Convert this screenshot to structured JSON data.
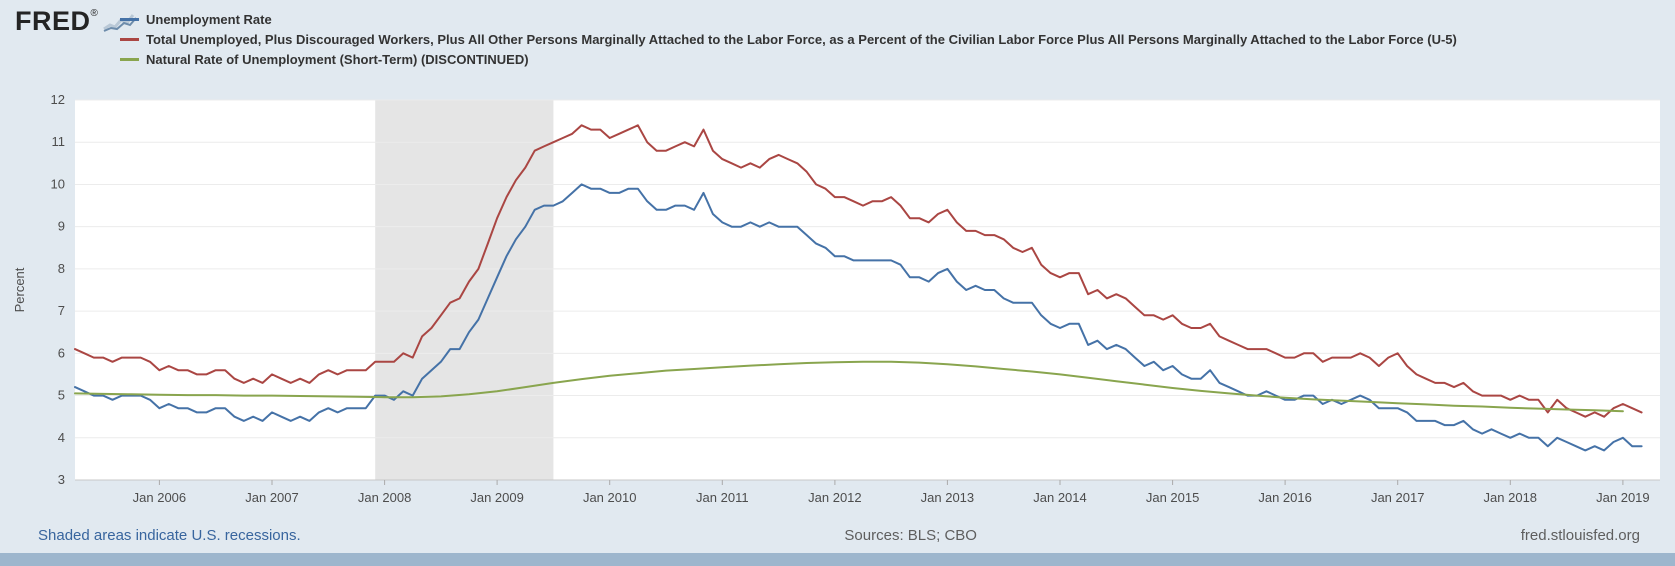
{
  "brand": {
    "name": "FRED",
    "registered": "®",
    "sparkline_icon": "fred-sparkline"
  },
  "colors": {
    "page_background": "#e1e9f0",
    "plot_background": "#ffffff",
    "recession_band": "#e5e5e5",
    "gridline": "#ececec",
    "axis_line": "#c8c8c8",
    "bottom_bar": "#9db6cd",
    "blue_series": "#4572a7",
    "red_series": "#aa4643",
    "green_series": "#89a54e",
    "link_blue": "#38659e"
  },
  "legend": {
    "items": [
      {
        "label": "Unemployment Rate",
        "color": "#4572a7"
      },
      {
        "label": "Total Unemployed, Plus Discouraged Workers, Plus All Other Persons Marginally Attached to the Labor Force, as a Percent of the Civilian Labor Force Plus All Persons Marginally Attached to the Labor Force (U-5)",
        "color": "#aa4643"
      },
      {
        "label": "Natural Rate of Unemployment (Short-Term) (DISCONTINUED)",
        "color": "#89a54e"
      }
    ]
  },
  "footer": {
    "notes": "Shaded areas indicate U.S. recessions.",
    "sources": "Sources: BLS; CBO",
    "site": "fred.stlouisfed.org"
  },
  "chart_data": {
    "type": "line",
    "title": "",
    "xlabel": "",
    "ylabel": "Percent",
    "ylim": [
      3,
      12
    ],
    "xlim": [
      2005.25,
      2019.33
    ],
    "grid": true,
    "legend_position": "top-left",
    "y_ticks": [
      3,
      4,
      5,
      6,
      7,
      8,
      9,
      10,
      11,
      12
    ],
    "x_ticks": [
      {
        "x": 2006,
        "label": "Jan 2006"
      },
      {
        "x": 2007,
        "label": "Jan 2007"
      },
      {
        "x": 2008,
        "label": "Jan 2008"
      },
      {
        "x": 2009,
        "label": "Jan 2009"
      },
      {
        "x": 2010,
        "label": "Jan 2010"
      },
      {
        "x": 2011,
        "label": "Jan 2011"
      },
      {
        "x": 2012,
        "label": "Jan 2012"
      },
      {
        "x": 2013,
        "label": "Jan 2013"
      },
      {
        "x": 2014,
        "label": "Jan 2014"
      },
      {
        "x": 2015,
        "label": "Jan 2015"
      },
      {
        "x": 2016,
        "label": "Jan 2016"
      },
      {
        "x": 2017,
        "label": "Jan 2017"
      },
      {
        "x": 2018,
        "label": "Jan 2018"
      },
      {
        "x": 2019,
        "label": "Jan 2019"
      }
    ],
    "recessions": [
      {
        "start": 2007.917,
        "end": 2009.5
      }
    ],
    "series": [
      {
        "name": "Unemployment Rate",
        "color": "#4572a7",
        "width": 2,
        "x_start": 2005.25,
        "x_step": 0.0833333,
        "frequency": "monthly",
        "first_period": "2005-04",
        "values": [
          5.2,
          5.1,
          5.0,
          5.0,
          4.9,
          5.0,
          5.0,
          5.0,
          4.9,
          4.7,
          4.8,
          4.7,
          4.7,
          4.6,
          4.6,
          4.7,
          4.7,
          4.5,
          4.4,
          4.5,
          4.4,
          4.6,
          4.5,
          4.4,
          4.5,
          4.4,
          4.6,
          4.7,
          4.6,
          4.7,
          4.7,
          4.7,
          5.0,
          5.0,
          4.9,
          5.1,
          5.0,
          5.4,
          5.6,
          5.8,
          6.1,
          6.1,
          6.5,
          6.8,
          7.3,
          7.8,
          8.3,
          8.7,
          9.0,
          9.4,
          9.5,
          9.5,
          9.6,
          9.8,
          10.0,
          9.9,
          9.9,
          9.8,
          9.8,
          9.9,
          9.9,
          9.6,
          9.4,
          9.4,
          9.5,
          9.5,
          9.4,
          9.8,
          9.3,
          9.1,
          9.0,
          9.0,
          9.1,
          9.0,
          9.1,
          9.0,
          9.0,
          9.0,
          8.8,
          8.6,
          8.5,
          8.3,
          8.3,
          8.2,
          8.2,
          8.2,
          8.2,
          8.2,
          8.1,
          7.8,
          7.8,
          7.7,
          7.9,
          8.0,
          7.7,
          7.5,
          7.6,
          7.5,
          7.5,
          7.3,
          7.2,
          7.2,
          7.2,
          6.9,
          6.7,
          6.6,
          6.7,
          6.7,
          6.2,
          6.3,
          6.1,
          6.2,
          6.1,
          5.9,
          5.7,
          5.8,
          5.6,
          5.7,
          5.5,
          5.4,
          5.4,
          5.6,
          5.3,
          5.2,
          5.1,
          5.0,
          5.0,
          5.1,
          5.0,
          4.9,
          4.9,
          5.0,
          5.0,
          4.8,
          4.9,
          4.8,
          4.9,
          5.0,
          4.9,
          4.7,
          4.7,
          4.7,
          4.6,
          4.4,
          4.4,
          4.4,
          4.3,
          4.3,
          4.4,
          4.2,
          4.1,
          4.2,
          4.1,
          4.0,
          4.1,
          4.0,
          4.0,
          3.8,
          4.0,
          3.9,
          3.8,
          3.7,
          3.8,
          3.7,
          3.9,
          4.0,
          3.8,
          3.8
        ]
      },
      {
        "name": "Total Unemployed, Plus Discouraged Workers, Plus All Other Persons Marginally Attached to the Labor Force, as a Percent of the Civilian Labor Force Plus All Persons Marginally Attached to the Labor Force (U-5)",
        "color": "#aa4643",
        "width": 2,
        "x_start": 2005.25,
        "x_step": 0.0833333,
        "frequency": "monthly",
        "first_period": "2005-04",
        "values": [
          6.1,
          6.0,
          5.9,
          5.9,
          5.8,
          5.9,
          5.9,
          5.9,
          5.8,
          5.6,
          5.7,
          5.6,
          5.6,
          5.5,
          5.5,
          5.6,
          5.6,
          5.4,
          5.3,
          5.4,
          5.3,
          5.5,
          5.4,
          5.3,
          5.4,
          5.3,
          5.5,
          5.6,
          5.5,
          5.6,
          5.6,
          5.6,
          5.8,
          5.8,
          5.8,
          6.0,
          5.9,
          6.4,
          6.6,
          6.9,
          7.2,
          7.3,
          7.7,
          8.0,
          8.6,
          9.2,
          9.7,
          10.1,
          10.4,
          10.8,
          10.9,
          11.0,
          11.1,
          11.2,
          11.4,
          11.3,
          11.3,
          11.1,
          11.2,
          11.3,
          11.4,
          11.0,
          10.8,
          10.8,
          10.9,
          11.0,
          10.9,
          11.3,
          10.8,
          10.6,
          10.5,
          10.4,
          10.5,
          10.4,
          10.6,
          10.7,
          10.6,
          10.5,
          10.3,
          10.0,
          9.9,
          9.7,
          9.7,
          9.6,
          9.5,
          9.6,
          9.6,
          9.7,
          9.5,
          9.2,
          9.2,
          9.1,
          9.3,
          9.4,
          9.1,
          8.9,
          8.9,
          8.8,
          8.8,
          8.7,
          8.5,
          8.4,
          8.5,
          8.1,
          7.9,
          7.8,
          7.9,
          7.9,
          7.4,
          7.5,
          7.3,
          7.4,
          7.3,
          7.1,
          6.9,
          6.9,
          6.8,
          6.9,
          6.7,
          6.6,
          6.6,
          6.7,
          6.4,
          6.3,
          6.2,
          6.1,
          6.1,
          6.1,
          6.0,
          5.9,
          5.9,
          6.0,
          6.0,
          5.8,
          5.9,
          5.9,
          5.9,
          6.0,
          5.9,
          5.7,
          5.9,
          6.0,
          5.7,
          5.5,
          5.4,
          5.3,
          5.3,
          5.2,
          5.3,
          5.1,
          5.0,
          5.0,
          5.0,
          4.9,
          5.0,
          4.9,
          4.9,
          4.6,
          4.9,
          4.7,
          4.6,
          4.5,
          4.6,
          4.5,
          4.7,
          4.8,
          4.7,
          4.6
        ]
      },
      {
        "name": "Natural Rate of Unemployment (Short-Term) (DISCONTINUED)",
        "color": "#89a54e",
        "width": 2,
        "x_start": 2005.25,
        "x_step": 0.25,
        "frequency": "quarterly",
        "first_period": "2005-Q2",
        "values": [
          5.05,
          5.04,
          5.03,
          5.02,
          5.01,
          5.01,
          5.0,
          5.0,
          4.99,
          4.98,
          4.97,
          4.96,
          4.96,
          4.98,
          5.03,
          5.1,
          5.2,
          5.3,
          5.39,
          5.47,
          5.53,
          5.59,
          5.63,
          5.67,
          5.71,
          5.74,
          5.77,
          5.79,
          5.8,
          5.8,
          5.78,
          5.74,
          5.69,
          5.63,
          5.57,
          5.5,
          5.42,
          5.34,
          5.26,
          5.18,
          5.11,
          5.05,
          5.0,
          4.95,
          4.91,
          4.88,
          4.85,
          4.82,
          4.79,
          4.76,
          4.74,
          4.71,
          4.69,
          4.67,
          4.65,
          4.63
        ]
      }
    ]
  }
}
